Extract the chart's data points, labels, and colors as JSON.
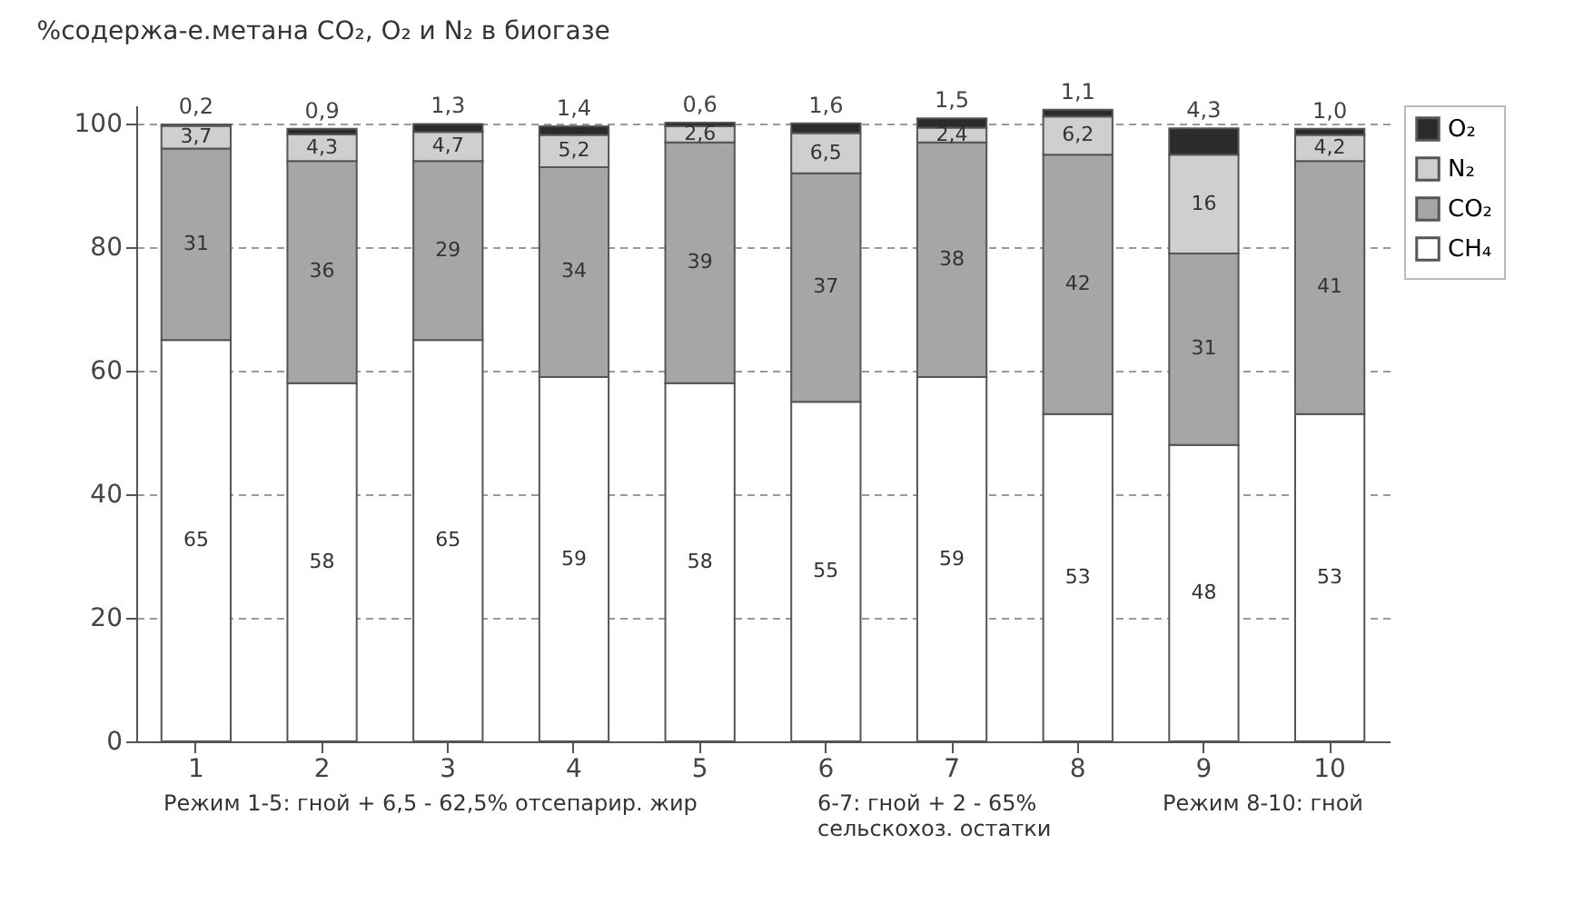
{
  "chart_data": {
    "type": "bar",
    "stacked": true,
    "title": "%содержа-е.метана CO₂, O₂ и  N₂ в биогазе",
    "categories": [
      "1",
      "2",
      "3",
      "4",
      "5",
      "6",
      "7",
      "8",
      "9",
      "10"
    ],
    "series": [
      {
        "name": "CH₄",
        "color": "#ffffff",
        "values": [
          65,
          58,
          65,
          59,
          58,
          55,
          59,
          53,
          48,
          53
        ],
        "value_labels": [
          "65",
          "58",
          "65",
          "59",
          "58",
          "55",
          "59",
          "53",
          "48",
          "53"
        ]
      },
      {
        "name": "CO₂",
        "color": "#a6a6a6",
        "values": [
          31,
          36,
          29,
          34,
          39,
          37,
          38,
          42,
          31,
          41
        ],
        "value_labels": [
          "31",
          "36",
          "29",
          "34",
          "39",
          "37",
          "38",
          "42",
          "31",
          "41"
        ]
      },
      {
        "name": "N₂",
        "color": "#cfcfcf",
        "values": [
          3.7,
          4.3,
          4.7,
          5.2,
          2.6,
          6.5,
          2.4,
          6.2,
          16,
          4.2
        ],
        "value_labels": [
          "3,7",
          "4,3",
          "4,7",
          "5,2",
          "2,6",
          "6,5",
          "2,4",
          "6,2",
          "16",
          "4,2"
        ]
      },
      {
        "name": "O₂",
        "color": "#2b2b2b",
        "values": [
          0.2,
          0.9,
          1.3,
          1.4,
          0.6,
          1.6,
          1.5,
          1.1,
          4.3,
          1.0
        ],
        "value_labels": [
          "0,2",
          "0,9",
          "1,3",
          "1,4",
          "0,6",
          "1,6",
          "1,5",
          "1,1",
          "4,3",
          "1,0"
        ]
      }
    ],
    "ylim": [
      0,
      103
    ],
    "yticks": [
      0,
      20,
      40,
      60,
      80,
      100
    ],
    "grid": "y",
    "legend": "right",
    "annotations": [
      "Режим 1-5: гной + 6,5 - 62,5% отсепарир. жир",
      "6-7: гной + 2 - 65% сельскохоз. остатки",
      "Режим 8-10: гной"
    ]
  }
}
